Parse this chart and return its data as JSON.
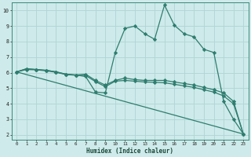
{
  "xlabel": "Humidex (Indice chaleur)",
  "bg_color": "#ceeaea",
  "grid_color": "#b0d4d4",
  "line_color": "#2e7d6e",
  "xlim_min": -0.5,
  "xlim_max": 23.5,
  "ylim_min": 1.7,
  "ylim_max": 10.5,
  "yticks": [
    2,
    3,
    4,
    5,
    6,
    7,
    8,
    9,
    10
  ],
  "xticks": [
    0,
    1,
    2,
    3,
    4,
    5,
    6,
    7,
    8,
    9,
    10,
    11,
    12,
    13,
    14,
    15,
    16,
    17,
    18,
    19,
    20,
    21,
    22,
    23
  ],
  "line1_x": [
    0,
    1,
    2,
    3,
    4,
    5,
    6,
    7,
    8,
    9,
    10,
    11,
    12,
    13,
    14,
    15,
    16,
    17,
    18,
    19,
    20,
    21,
    22,
    23
  ],
  "line1_y": [
    6.05,
    6.25,
    6.2,
    6.15,
    6.05,
    5.9,
    5.85,
    5.75,
    4.75,
    4.7,
    7.3,
    8.85,
    9.0,
    8.5,
    8.15,
    10.35,
    9.05,
    8.5,
    8.3,
    7.5,
    7.3,
    4.15,
    3.0,
    2.05
  ],
  "line2_x": [
    0,
    1,
    2,
    3,
    4,
    5,
    6,
    7,
    8,
    9,
    10,
    11,
    12,
    13,
    14,
    15,
    16,
    17,
    18,
    19,
    20,
    21,
    22,
    23
  ],
  "line2_y": [
    6.05,
    6.25,
    6.2,
    6.15,
    6.05,
    5.9,
    5.85,
    5.9,
    5.5,
    5.2,
    5.5,
    5.65,
    5.55,
    5.5,
    5.5,
    5.5,
    5.4,
    5.3,
    5.2,
    5.05,
    4.9,
    4.7,
    4.15,
    2.05
  ],
  "line3_x": [
    0,
    1,
    2,
    3,
    4,
    5,
    6,
    7,
    8,
    9,
    10,
    11,
    12,
    13,
    14,
    15,
    16,
    17,
    18,
    19,
    20,
    21,
    22,
    23
  ],
  "line3_y": [
    6.05,
    6.2,
    6.18,
    6.12,
    6.02,
    5.88,
    5.83,
    5.82,
    5.42,
    5.1,
    5.45,
    5.5,
    5.45,
    5.4,
    5.38,
    5.35,
    5.25,
    5.15,
    5.05,
    4.9,
    4.75,
    4.5,
    4.0,
    2.05
  ],
  "line4_x": [
    0,
    23
  ],
  "line4_y": [
    6.05,
    2.05
  ]
}
